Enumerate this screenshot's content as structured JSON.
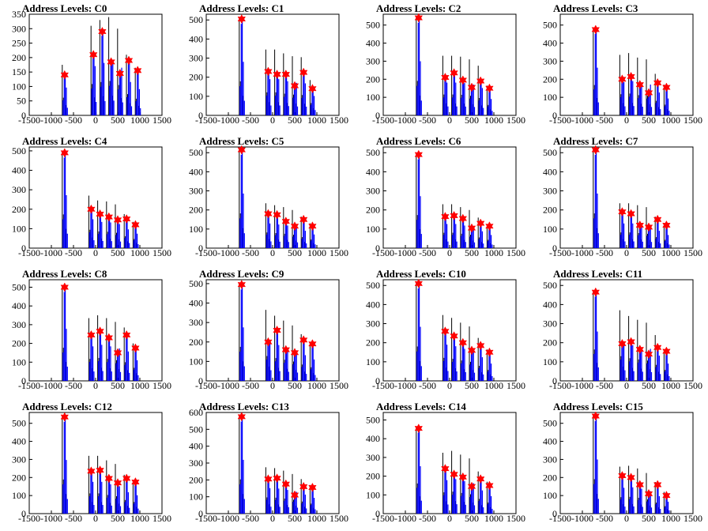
{
  "colors": {
    "histogram": "#0000ff",
    "raw_spikes": "#000000",
    "peak_marker": "#ff0000",
    "axes": "#000000"
  },
  "chart_data": [
    {
      "type": "bar",
      "title": "Address Levels: C0",
      "xlim": [
        -1500,
        1500
      ],
      "ylim": [
        0,
        350
      ],
      "xticks": [
        -1500,
        -1000,
        -500,
        0,
        500,
        1000,
        1500
      ],
      "yticks": [
        0,
        50,
        100,
        150,
        200,
        250,
        300,
        350
      ],
      "peaks": {
        "x": [
          -700,
          -50,
          150,
          350,
          550,
          750,
          950
        ],
        "y": [
          140,
          210,
          290,
          185,
          145,
          190,
          155
        ]
      },
      "bars": {
        "x": [
          -700,
          -50,
          150,
          350,
          550,
          750,
          950
        ],
        "y": [
          175,
          310,
          330,
          340,
          300,
          210,
          165
        ]
      }
    },
    {
      "type": "bar",
      "title": "Address Levels: C1",
      "xlim": [
        -1500,
        1500
      ],
      "ylim": [
        0,
        530
      ],
      "xticks": [
        -1500,
        -1000,
        -500,
        0,
        500,
        1000,
        1500
      ],
      "yticks": [
        0,
        100,
        200,
        300,
        400,
        500
      ],
      "peaks": {
        "x": [
          -700,
          -100,
          100,
          300,
          500,
          700,
          900
        ],
        "y": [
          505,
          230,
          215,
          215,
          155,
          225,
          140
        ]
      },
      "bars": {
        "x": [
          -700,
          -100,
          100,
          300,
          500,
          700,
          900
        ],
        "y": [
          510,
          345,
          345,
          325,
          310,
          305,
          185
        ]
      }
    },
    {
      "type": "bar",
      "title": "Address Levels: C2",
      "xlim": [
        -1500,
        1500
      ],
      "ylim": [
        0,
        560
      ],
      "xticks": [
        -1500,
        -1000,
        -500,
        0,
        500,
        1000,
        1500
      ],
      "yticks": [
        0,
        100,
        200,
        300,
        400,
        500
      ],
      "peaks": {
        "x": [
          -700,
          -100,
          100,
          300,
          500,
          700,
          900
        ],
        "y": [
          540,
          210,
          235,
          195,
          155,
          190,
          150
        ]
      },
      "bars": {
        "x": [
          -700,
          -100,
          100,
          300,
          500,
          700,
          900
        ],
        "y": [
          545,
          330,
          330,
          325,
          310,
          275,
          165
        ]
      }
    },
    {
      "type": "bar",
      "title": "Address Levels: C3",
      "xlim": [
        -1500,
        1500
      ],
      "ylim": [
        0,
        560
      ],
      "xticks": [
        -1500,
        -1000,
        -500,
        0,
        500,
        1000,
        1500
      ],
      "yticks": [
        0,
        100,
        200,
        300,
        400,
        500
      ],
      "peaks": {
        "x": [
          -700,
          -100,
          100,
          300,
          500,
          700,
          900
        ],
        "y": [
          475,
          200,
          215,
          170,
          125,
          180,
          155
        ]
      },
      "bars": {
        "x": [
          -700,
          -100,
          100,
          300,
          500,
          700,
          900
        ],
        "y": [
          480,
          335,
          345,
          320,
          310,
          230,
          170
        ]
      }
    },
    {
      "type": "bar",
      "title": "Address Levels: C4",
      "xlim": [
        -1500,
        1500
      ],
      "ylim": [
        0,
        520
      ],
      "xticks": [
        -1500,
        -1000,
        -500,
        0,
        500,
        1000,
        1500
      ],
      "yticks": [
        0,
        100,
        200,
        300,
        400,
        500
      ],
      "peaks": {
        "x": [
          -700,
          -100,
          100,
          300,
          500,
          700,
          900
        ],
        "y": [
          490,
          200,
          175,
          160,
          145,
          150,
          120
        ]
      },
      "bars": {
        "x": [
          -700,
          -100,
          100,
          300,
          500,
          700,
          900
        ],
        "y": [
          495,
          270,
          245,
          240,
          225,
          175,
          135
        ]
      }
    },
    {
      "type": "bar",
      "title": "Address Levels: C5",
      "xlim": [
        -1500,
        1500
      ],
      "ylim": [
        0,
        530
      ],
      "xticks": [
        -1500,
        -1000,
        -500,
        0,
        500,
        1000,
        1500
      ],
      "yticks": [
        0,
        100,
        200,
        300,
        400,
        500
      ],
      "peaks": {
        "x": [
          -700,
          -100,
          100,
          300,
          500,
          700,
          900
        ],
        "y": [
          515,
          180,
          175,
          140,
          115,
          150,
          115
        ]
      },
      "bars": {
        "x": [
          -700,
          -100,
          100,
          300,
          500,
          700,
          900
        ],
        "y": [
          520,
          235,
          225,
          215,
          200,
          165,
          130
        ]
      }
    },
    {
      "type": "bar",
      "title": "Address Levels: C6",
      "xlim": [
        -1500,
        1500
      ],
      "ylim": [
        0,
        530
      ],
      "xticks": [
        -1500,
        -1000,
        -500,
        0,
        500,
        1000,
        1500
      ],
      "yticks": [
        0,
        100,
        200,
        300,
        400,
        500
      ],
      "peaks": {
        "x": [
          -700,
          -100,
          100,
          300,
          500,
          700,
          900
        ],
        "y": [
          490,
          165,
          170,
          155,
          105,
          130,
          115
        ]
      },
      "bars": {
        "x": [
          -700,
          -100,
          100,
          300,
          500,
          700,
          900
        ],
        "y": [
          495,
          230,
          230,
          215,
          200,
          160,
          125
        ]
      }
    },
    {
      "type": "bar",
      "title": "Address Levels: C7",
      "xlim": [
        -1500,
        1500
      ],
      "ylim": [
        0,
        530
      ],
      "xticks": [
        -1500,
        -1000,
        -500,
        0,
        500,
        1000,
        1500
      ],
      "yticks": [
        0,
        100,
        200,
        300,
        400,
        500
      ],
      "peaks": {
        "x": [
          -700,
          -100,
          100,
          300,
          500,
          700,
          900
        ],
        "y": [
          515,
          190,
          180,
          120,
          110,
          150,
          120
        ]
      },
      "bars": {
        "x": [
          -700,
          -100,
          100,
          300,
          500,
          700,
          900
        ],
        "y": [
          520,
          235,
          235,
          225,
          215,
          165,
          125
        ]
      }
    },
    {
      "type": "bar",
      "title": "Address Levels: C8",
      "xlim": [
        -1500,
        1500
      ],
      "ylim": [
        0,
        540
      ],
      "xticks": [
        -1500,
        -1000,
        -500,
        0,
        500,
        1000,
        1500
      ],
      "yticks": [
        0,
        100,
        200,
        300,
        400,
        500
      ],
      "peaks": {
        "x": [
          -700,
          -100,
          100,
          300,
          500,
          700,
          900
        ],
        "y": [
          500,
          245,
          265,
          230,
          150,
          245,
          175
        ]
      },
      "bars": {
        "x": [
          -700,
          -100,
          100,
          300,
          500,
          700,
          900
        ],
        "y": [
          505,
          335,
          350,
          335,
          315,
          285,
          200
        ]
      }
    },
    {
      "type": "bar",
      "title": "Address Levels: C9",
      "xlim": [
        -1500,
        1500
      ],
      "ylim": [
        0,
        520
      ],
      "xticks": [
        -1500,
        -1000,
        -500,
        0,
        500,
        1000,
        1500
      ],
      "yticks": [
        0,
        100,
        200,
        300,
        400,
        500
      ],
      "peaks": {
        "x": [
          -700,
          -100,
          100,
          300,
          500,
          700,
          900
        ],
        "y": [
          495,
          200,
          260,
          160,
          145,
          210,
          190
        ]
      },
      "bars": {
        "x": [
          -700,
          -100,
          100,
          300,
          500,
          700,
          900
        ],
        "y": [
          500,
          365,
          335,
          310,
          285,
          240,
          200
        ]
      }
    },
    {
      "type": "bar",
      "title": "Address Levels: C10",
      "xlim": [
        -1500,
        1500
      ],
      "ylim": [
        0,
        530
      ],
      "xticks": [
        -1500,
        -1000,
        -500,
        0,
        500,
        1000,
        1500
      ],
      "yticks": [
        0,
        100,
        200,
        300,
        400,
        500
      ],
      "peaks": {
        "x": [
          -700,
          -100,
          100,
          300,
          500,
          700,
          900
        ],
        "y": [
          510,
          260,
          235,
          200,
          160,
          185,
          150
        ]
      },
      "bars": {
        "x": [
          -700,
          -100,
          100,
          300,
          500,
          700,
          900
        ],
        "y": [
          515,
          345,
          330,
          305,
          285,
          225,
          165
        ]
      }
    },
    {
      "type": "bar",
      "title": "Address Levels: C11",
      "xlim": [
        -1500,
        1500
      ],
      "ylim": [
        0,
        530
      ],
      "xticks": [
        -1500,
        -1000,
        -500,
        0,
        500,
        1000,
        1500
      ],
      "yticks": [
        0,
        100,
        200,
        300,
        400,
        500
      ],
      "peaks": {
        "x": [
          -700,
          -100,
          100,
          300,
          500,
          700,
          900
        ],
        "y": [
          465,
          195,
          205,
          165,
          140,
          175,
          155
        ]
      },
      "bars": {
        "x": [
          -700,
          -100,
          100,
          300,
          500,
          700,
          900
        ],
        "y": [
          470,
          370,
          340,
          320,
          305,
          240,
          165
        ]
      }
    },
    {
      "type": "bar",
      "title": "Address Levels: C12",
      "xlim": [
        -1500,
        1500
      ],
      "ylim": [
        0,
        560
      ],
      "xticks": [
        -1500,
        -1000,
        -500,
        0,
        500,
        1000,
        1500
      ],
      "yticks": [
        0,
        100,
        200,
        300,
        400,
        500
      ],
      "peaks": {
        "x": [
          -700,
          -100,
          100,
          300,
          500,
          700,
          900
        ],
        "y": [
          535,
          235,
          240,
          195,
          170,
          195,
          175
        ]
      },
      "bars": {
        "x": [
          -700,
          -100,
          100,
          300,
          500,
          700,
          900
        ],
        "y": [
          540,
          320,
          320,
          295,
          275,
          215,
          185
        ]
      }
    },
    {
      "type": "bar",
      "title": "Address Levels: C13",
      "xlim": [
        -1500,
        1500
      ],
      "ylim": [
        0,
        600
      ],
      "xticks": [
        -1500,
        -1000,
        -500,
        0,
        500,
        1000,
        1500
      ],
      "yticks": [
        0,
        100,
        200,
        300,
        400,
        500,
        600
      ],
      "peaks": {
        "x": [
          -700,
          -100,
          100,
          300,
          500,
          700,
          900
        ],
        "y": [
          575,
          205,
          210,
          175,
          110,
          160,
          155
        ]
      },
      "bars": {
        "x": [
          -700,
          -100,
          100,
          300,
          500,
          700,
          900
        ],
        "y": [
          580,
          275,
          270,
          255,
          235,
          205,
          170
        ]
      }
    },
    {
      "type": "bar",
      "title": "Address Levels: C14",
      "xlim": [
        -1500,
        1500
      ],
      "ylim": [
        0,
        540
      ],
      "xticks": [
        -1500,
        -1000,
        -500,
        0,
        500,
        1000,
        1500
      ],
      "yticks": [
        0,
        100,
        200,
        300,
        400,
        500
      ],
      "peaks": {
        "x": [
          -700,
          -100,
          100,
          300,
          500,
          700,
          900
        ],
        "y": [
          455,
          240,
          210,
          195,
          145,
          185,
          150
        ]
      },
      "bars": {
        "x": [
          -700,
          -100,
          100,
          300,
          500,
          700,
          900
        ],
        "y": [
          460,
          325,
          335,
          315,
          295,
          225,
          170
        ]
      }
    },
    {
      "type": "bar",
      "title": "Address Levels: C15",
      "xlim": [
        -1500,
        1500
      ],
      "ylim": [
        0,
        560
      ],
      "xticks": [
        -1500,
        -1000,
        -500,
        0,
        500,
        1000,
        1500
      ],
      "yticks": [
        0,
        100,
        200,
        300,
        400,
        500
      ],
      "peaks": {
        "x": [
          -700,
          -100,
          100,
          300,
          500,
          700,
          900
        ],
        "y": [
          540,
          210,
          200,
          160,
          110,
          160,
          100
        ]
      },
      "bars": {
        "x": [
          -700,
          -100,
          100,
          300,
          500,
          700,
          900
        ],
        "y": [
          545,
          260,
          265,
          250,
          225,
          175,
          120
        ]
      }
    }
  ]
}
